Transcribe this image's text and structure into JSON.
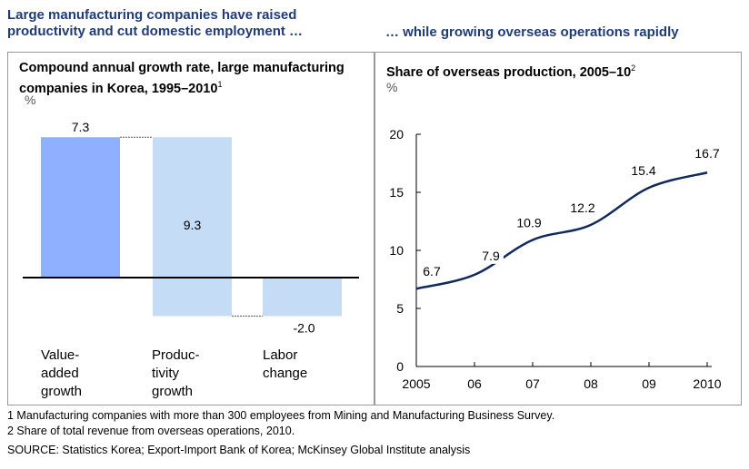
{
  "headlines": {
    "left": "Large manufacturing companies have raised productivity and cut domestic employment …",
    "right": "… while growing overseas operations rapidly"
  },
  "chart_data": [
    {
      "type": "bar",
      "title": "Compound annual growth rate, large manufacturing companies in Korea, 1995–2010",
      "title_footnote": "1",
      "unit": "%",
      "categories": [
        "Value-added growth",
        "Productivity growth",
        "Labor change"
      ],
      "category_lines": [
        [
          "Value-",
          "added",
          "growth"
        ],
        [
          "Produc-",
          "tivity",
          "growth"
        ],
        [
          "Labor",
          "change"
        ]
      ],
      "values": [
        7.3,
        9.3,
        -2.0
      ],
      "value_labels": [
        "7.3",
        "9.3",
        "-2.0"
      ],
      "colors": [
        "#8fb0ff",
        "#c5dcf6",
        "#c5dcf6"
      ],
      "style": "waterfall"
    },
    {
      "type": "line",
      "title": "Share of overseas production, 2005–10",
      "title_footnote": "2",
      "unit": "%",
      "x_tick_labels": [
        "2005",
        "06",
        "07",
        "08",
        "09",
        "2010"
      ],
      "x": [
        2005,
        2006,
        2007,
        2008,
        2009,
        2010
      ],
      "values": [
        6.7,
        7.9,
        10.9,
        12.2,
        15.4,
        16.7
      ],
      "value_labels": [
        "6.7",
        "7.9",
        "10.9",
        "12.2",
        "15.4",
        "16.7"
      ],
      "ylim": [
        0,
        20
      ],
      "y_ticks": [
        0,
        5,
        10,
        15,
        20
      ],
      "y_tick_labels": [
        "0",
        "5",
        "10",
        "15",
        "20"
      ],
      "color": "#102a5e",
      "grid": false
    }
  ],
  "footnotes": [
    "1  Manufacturing companies with more than 300 employees from Mining and Manufacturing Business Survey.",
    "2  Share of total revenue from overseas operations, 2010."
  ],
  "source": "SOURCE: Statistics Korea; Export-Import Bank of Korea; McKinsey Global Institute analysis"
}
